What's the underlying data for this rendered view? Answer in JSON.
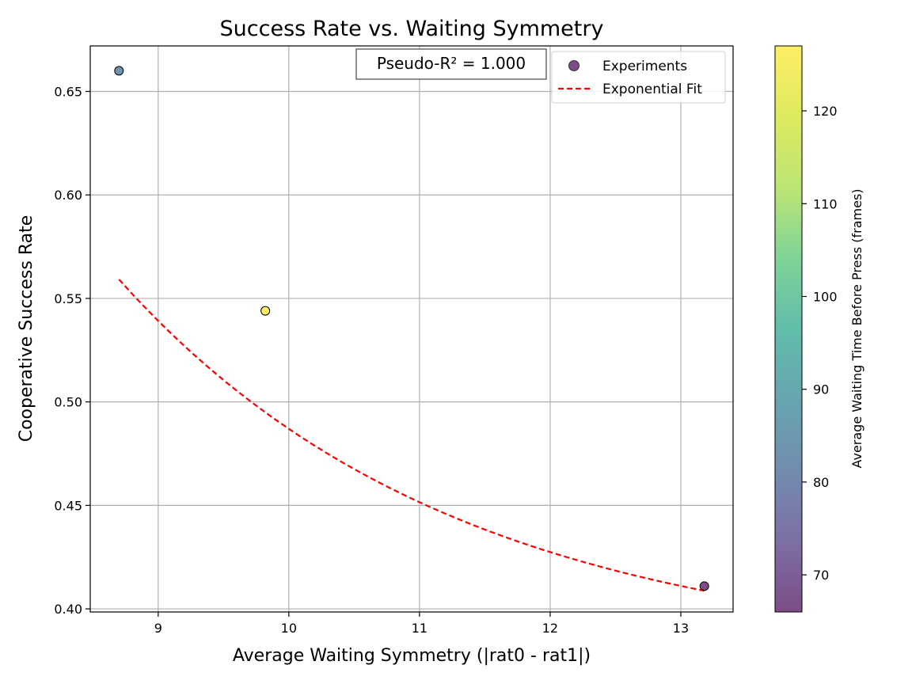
{
  "chart_data": {
    "type": "scatter",
    "title": "Success Rate vs. Waiting Symmetry",
    "xlabel": "Average Waiting Symmetry (|rat0 - rat1|)",
    "ylabel": "Cooperative Success Rate",
    "xlim": [
      8.48,
      13.4
    ],
    "ylim": [
      0.3985,
      0.672
    ],
    "x_ticks": [
      9,
      10,
      11,
      12,
      13
    ],
    "y_ticks": [
      0.4,
      0.45,
      0.5,
      0.55,
      0.6,
      0.65
    ],
    "x_tick_labels": [
      "9",
      "10",
      "11",
      "12",
      "13"
    ],
    "y_tick_labels": [
      "0.40",
      "0.45",
      "0.50",
      "0.55",
      "0.60",
      "0.65"
    ],
    "grid": true,
    "annotation": "Pseudo-R² = 1.000",
    "legend": {
      "placement": "top-right",
      "entries": [
        "Experiments",
        "Exponential Fit"
      ]
    },
    "series": [
      {
        "name": "Experiments",
        "kind": "scatter",
        "points": [
          {
            "x": 8.7,
            "y": 0.66,
            "c": 83
          },
          {
            "x": 9.82,
            "y": 0.544,
            "c": 127
          },
          {
            "x": 13.18,
            "y": 0.411,
            "c": 66
          }
        ]
      },
      {
        "name": "Exponential Fit",
        "kind": "line",
        "style": "dashed",
        "color": "#ff0000",
        "model": "a*exp(-b*x)+c",
        "params": {
          "a": 5.28,
          "b": 0.3866,
          "c": 0.3764
        },
        "x_range": [
          8.7,
          13.18
        ]
      }
    ],
    "colorbar": {
      "label": "Average Waiting Time Before Press (frames)",
      "range": [
        66,
        127
      ],
      "ticks": [
        70,
        80,
        90,
        100,
        110,
        120
      ],
      "tick_labels": [
        "70",
        "80",
        "90",
        "100",
        "110",
        "120"
      ],
      "colormap": "viridis",
      "alpha": 0.7
    }
  }
}
